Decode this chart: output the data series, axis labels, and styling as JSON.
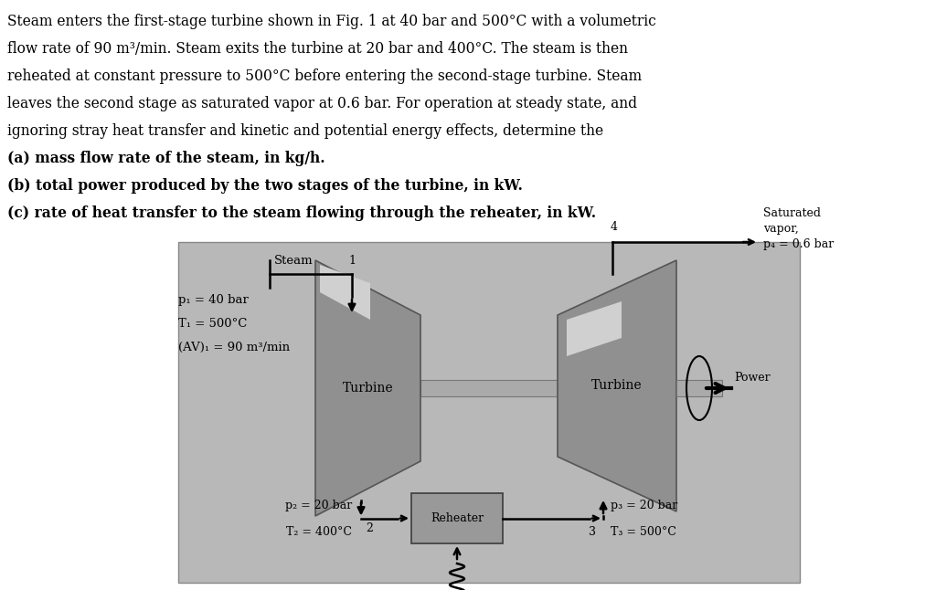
{
  "bg_color": "#ffffff",
  "text_color": "#000000",
  "diagram_bg": "#bbbbbb",
  "paragraph": [
    "Steam enters the first-stage turbine shown in Fig. 1 at 40 bar and 500°C with a volumetric",
    "flow rate of 90 m³/min. Steam exits the turbine at 20 bar and 400°C. The steam is then",
    "reheated at constant pressure to 500°C before entering the second-stage turbine. Steam",
    "leaves the second stage as saturated vapor at 0.6 bar. For operation at steady state, and",
    "ignoring stray heat transfer and kinetic and potential energy effects, determine the",
    "(a) mass flow rate of the steam, in kg/h.",
    "(b) total power produced by the two stages of the turbine, in kW.",
    "(c) rate of heat transfer to the steam flowing through the reheater, in kW."
  ],
  "label_steam": "Steam",
  "label_p1": "p₁ = 40 bar",
  "label_T1": "T₁ = 500°C",
  "label_AV1": "(AV)₁ = 90 m³/min",
  "label_turbine": "Turbine",
  "label_p2": "p₂ = 20 bar",
  "label_T2": "T₂ = 400°C",
  "label_2": "2",
  "label_reheater": "Reheater",
  "label_p3": "p₃ = 20 bar",
  "label_T3": "T₃ = 500°C",
  "label_3": "3",
  "label_4": "4",
  "label_sat": "Saturated",
  "label_vapor": "vapor,",
  "label_p4": "p₄ = 0.6 bar",
  "label_power": "Power",
  "label_1": "1"
}
